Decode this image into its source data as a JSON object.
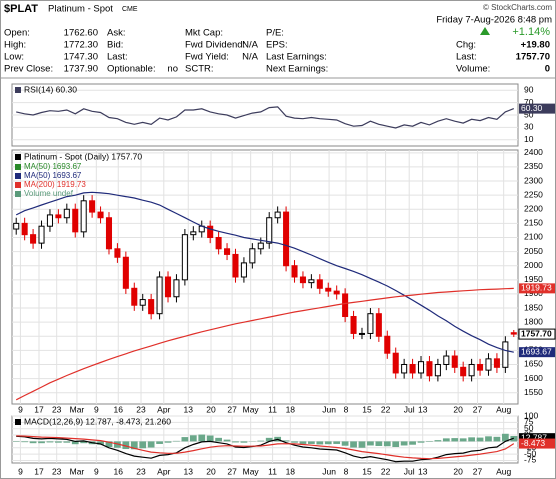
{
  "header": {
    "symbol": "$PLAT",
    "name": "Platinum - Spot",
    "exchange": "CME",
    "credit": "© StockCharts.com",
    "datetime": "Friday 7-Aug-2026 8:48 pm",
    "change_pct": "+1.14%",
    "columns": [
      [
        {
          "label": "Open:",
          "value": "1762.60"
        },
        {
          "label": "High:",
          "value": "1772.30"
        },
        {
          "label": "Low:",
          "value": "1747.30"
        },
        {
          "label": "Prev Close:",
          "value": "1737.90"
        }
      ],
      [
        {
          "label": "Ask:"
        },
        {
          "label": "Bid:"
        },
        {
          "label": "Last:"
        },
        {
          "label": "Optionable:",
          "value": "no"
        }
      ],
      [
        {
          "label": "Mkt Cap:"
        },
        {
          "label": "Fwd Dividend:",
          "value": "N/A"
        },
        {
          "label": "Fwd Yield:",
          "value": "N/A"
        },
        {
          "label": "SCTR:"
        }
      ],
      [
        {
          "label": "P/E:"
        },
        {
          "label": "EPS:"
        },
        {
          "label": "Last Earnings:"
        },
        {
          "label": "Next Earnings:"
        }
      ]
    ],
    "right": [
      {
        "label": "Chg:",
        "value": "+19.80"
      },
      {
        "label": "Last:",
        "value": "1757.70"
      },
      {
        "label": "Volume:",
        "value": "0"
      }
    ]
  },
  "chart_data": [
    {
      "type": "line",
      "xlim": [
        -0.5,
        59.5
      ],
      "ylim": [
        0,
        100
      ],
      "yticks": [
        10,
        30,
        50,
        70,
        90
      ],
      "grid": true,
      "series": [
        {
          "name": "RSI(14) 60.30",
          "color": "#3c3c5c",
          "last_label": "60.30",
          "values": [
            55,
            52,
            50,
            54,
            57,
            56,
            58,
            52,
            60,
            56,
            54,
            46,
            44,
            38,
            35,
            38,
            35,
            45,
            42,
            47,
            58,
            58,
            60,
            55,
            52,
            50,
            45,
            49,
            53,
            55,
            62,
            63,
            48,
            45,
            44,
            46,
            44,
            43,
            42,
            36,
            32,
            33,
            40,
            35,
            32,
            29,
            34,
            32,
            38,
            34,
            40,
            44,
            40,
            37,
            43,
            41,
            46,
            43,
            55,
            60.3
          ]
        }
      ]
    },
    {
      "type": "candlestick",
      "title": "Platinum - Spot (Daily) 1757.70",
      "last_label": "1757.70",
      "up_color": "#000000",
      "down_color": "#e00000",
      "xlim": [
        -0.5,
        59.5
      ],
      "ylim": [
        1510,
        2410
      ],
      "grid": true,
      "yticks": [
        1550,
        1600,
        1650,
        1700,
        1750,
        1800,
        1850,
        1900,
        1950,
        2000,
        2050,
        2100,
        2150,
        2200,
        2250,
        2300,
        2350,
        2400
      ],
      "xticks": [
        {
          "value": 0.5,
          "label": "9"
        },
        {
          "value": 2.7,
          "label": "17"
        },
        {
          "value": 4.8,
          "label": "23"
        },
        {
          "value": 7.2,
          "label": "Mar"
        },
        {
          "value": 9.5,
          "label": "9"
        },
        {
          "value": 12.1,
          "label": "16"
        },
        {
          "value": 14.8,
          "label": "23"
        },
        {
          "value": 17.5,
          "label": "Apr"
        },
        {
          "value": 20.4,
          "label": "13"
        },
        {
          "value": 23.1,
          "label": "20"
        },
        {
          "value": 25.6,
          "label": "27"
        },
        {
          "value": 27.8,
          "label": "May"
        },
        {
          "value": 30.4,
          "label": "11"
        },
        {
          "value": 32.5,
          "label": "18"
        },
        {
          "value": 37.1,
          "label": "Jun"
        },
        {
          "value": 39.1,
          "label": "8"
        },
        {
          "value": 41.6,
          "label": "15"
        },
        {
          "value": 43.8,
          "label": "22"
        },
        {
          "value": 46.6,
          "label": "Jul"
        },
        {
          "value": 48.2,
          "label": "13"
        },
        {
          "value": 52.4,
          "label": "20"
        },
        {
          "value": 54.7,
          "label": "27"
        },
        {
          "value": 57.8,
          "label": "Aug"
        }
      ],
      "open": [
        2130,
        2150,
        2110,
        2080,
        2140,
        2180,
        2170,
        2200,
        2120,
        2230,
        2190,
        2170,
        2060,
        2030,
        1920,
        1860,
        1880,
        1830,
        1960,
        1890,
        1950,
        2110,
        2120,
        2140,
        2100,
        2060,
        2040,
        1960,
        2010,
        2060,
        2080,
        2170,
        2190,
        2000,
        1960,
        1940,
        1950,
        1920,
        1910,
        1900,
        1820,
        1760,
        1760,
        1830,
        1750,
        1690,
        1620,
        1650,
        1620,
        1660,
        1610,
        1650,
        1680,
        1640,
        1610,
        1650,
        1630,
        1670,
        1640,
        1762.6
      ],
      "high": [
        2170,
        2170,
        2130,
        2160,
        2200,
        2200,
        2220,
        2220,
        2250,
        2250,
        2210,
        2190,
        2080,
        2050,
        1940,
        1900,
        1900,
        1980,
        1980,
        1970,
        2130,
        2140,
        2160,
        2160,
        2120,
        2080,
        2060,
        2030,
        2080,
        2100,
        2190,
        2210,
        2210,
        2020,
        1980,
        1970,
        1970,
        1940,
        1930,
        1920,
        1840,
        1780,
        1850,
        1850,
        1770,
        1710,
        1670,
        1670,
        1680,
        1680,
        1670,
        1700,
        1700,
        1660,
        1670,
        1670,
        1690,
        1690,
        1750,
        1772.3
      ],
      "low": [
        2110,
        2090,
        2060,
        2060,
        2120,
        2150,
        2150,
        2100,
        2100,
        2170,
        2150,
        2040,
        2010,
        1900,
        1840,
        1840,
        1810,
        1810,
        1870,
        1870,
        1930,
        2090,
        2100,
        2080,
        2040,
        2020,
        1940,
        1940,
        1990,
        2040,
        2060,
        2150,
        1980,
        1940,
        1920,
        1920,
        1900,
        1890,
        1880,
        1800,
        1740,
        1740,
        1740,
        1730,
        1670,
        1600,
        1600,
        1600,
        1600,
        1590,
        1590,
        1630,
        1620,
        1590,
        1590,
        1610,
        1610,
        1620,
        1620,
        1747.3
      ],
      "close": [
        2150,
        2110,
        2080,
        2140,
        2180,
        2170,
        2200,
        2120,
        2230,
        2190,
        2170,
        2060,
        2030,
        1920,
        1860,
        1880,
        1830,
        1960,
        1890,
        1950,
        2110,
        2120,
        2140,
        2100,
        2060,
        2040,
        1960,
        2010,
        2060,
        2080,
        2170,
        2190,
        2000,
        1960,
        1940,
        1950,
        1920,
        1910,
        1900,
        1820,
        1760,
        1760,
        1830,
        1750,
        1690,
        1620,
        1650,
        1620,
        1660,
        1610,
        1650,
        1680,
        1640,
        1610,
        1650,
        1630,
        1670,
        1640,
        1730,
        1757.7
      ],
      "series": [
        {
          "name": "MA(50) 1693.67",
          "color": "#2a8a2a"
        },
        {
          "name": "MA(50) 1693.67",
          "color": "#1f2a7a",
          "last_label": "1693.67",
          "values": [
            2180,
            2195,
            2205,
            2215,
            2225,
            2235,
            2245,
            2250,
            2258,
            2260,
            2258,
            2255,
            2250,
            2245,
            2240,
            2232,
            2225,
            2215,
            2200,
            2185,
            2170,
            2155,
            2140,
            2130,
            2122,
            2115,
            2108,
            2100,
            2095,
            2090,
            2085,
            2080,
            2072,
            2062,
            2050,
            2038,
            2025,
            2012,
            2000,
            1990,
            1980,
            1968,
            1955,
            1942,
            1928,
            1912,
            1895,
            1878,
            1860,
            1842,
            1822,
            1805,
            1785,
            1768,
            1752,
            1738,
            1722,
            1710,
            1700,
            1693.67
          ]
        },
        {
          "name": "MA(200) 1919.73",
          "color": "#e0302a",
          "last_label": "1919.73",
          "values": [
            1525,
            1540,
            1555,
            1570,
            1585,
            1598,
            1611,
            1623,
            1635,
            1646,
            1657,
            1668,
            1678,
            1688,
            1698,
            1707,
            1716,
            1725,
            1734,
            1742,
            1750,
            1758,
            1766,
            1773,
            1780,
            1787,
            1794,
            1800,
            1806,
            1812,
            1818,
            1824,
            1830,
            1836,
            1841,
            1846,
            1851,
            1856,
            1861,
            1866,
            1870,
            1874,
            1878,
            1882,
            1886,
            1890,
            1893,
            1896,
            1899,
            1902,
            1905,
            1907,
            1909,
            1911,
            1913,
            1915,
            1916,
            1917,
            1918.5,
            1919.73
          ]
        },
        {
          "name": "Volume undef",
          "color": "#5a9a7a"
        }
      ]
    },
    {
      "type": "macd",
      "title": "MACD(12,26,9) 12.787, -8.473, 21.260",
      "xlim": [
        -0.5,
        59.5
      ],
      "ylim": [
        -85,
        100
      ],
      "yticks": [
        -75,
        -50,
        -25,
        0,
        25,
        50,
        75,
        100
      ],
      "grid": true,
      "xticks": [
        {
          "value": 0.5,
          "label": "9"
        },
        {
          "value": 2.7,
          "label": "17"
        },
        {
          "value": 4.8,
          "label": "23"
        },
        {
          "value": 7.2,
          "label": "Mar"
        },
        {
          "value": 9.5,
          "label": "9"
        },
        {
          "value": 12.1,
          "label": "16"
        },
        {
          "value": 14.8,
          "label": "23"
        },
        {
          "value": 17.5,
          "label": "Apr"
        },
        {
          "value": 20.4,
          "label": "13"
        },
        {
          "value": 23.1,
          "label": "20"
        },
        {
          "value": 25.6,
          "label": "27"
        },
        {
          "value": 27.8,
          "label": "May"
        },
        {
          "value": 30.4,
          "label": "11"
        },
        {
          "value": 32.5,
          "label": "18"
        },
        {
          "value": 37.1,
          "label": "Jun"
        },
        {
          "value": 39.1,
          "label": "8"
        },
        {
          "value": 41.6,
          "label": "15"
        },
        {
          "value": 43.8,
          "label": "22"
        },
        {
          "value": 46.6,
          "label": "Jul"
        },
        {
          "value": 48.2,
          "label": "13"
        },
        {
          "value": 52.4,
          "label": "20"
        },
        {
          "value": 54.7,
          "label": "27"
        },
        {
          "value": 57.8,
          "label": "Aug"
        }
      ],
      "histogram": {
        "color": "#6aa88a",
        "values": [
          -2,
          -3,
          -7,
          -7,
          -4,
          -5,
          -5,
          -11,
          -7,
          -11,
          -13,
          -22,
          -25,
          -30,
          -31,
          -27,
          -24,
          -10,
          -5,
          2,
          17,
          24,
          27,
          23,
          14,
          7,
          -4,
          -5,
          -1,
          3,
          14,
          18,
          4,
          -5,
          -10,
          -10,
          -12,
          -11,
          -10,
          -17,
          -24,
          -25,
          -16,
          -18,
          -19,
          -22,
          -16,
          -13,
          -5,
          -2,
          5,
          12,
          13,
          12,
          16,
          15,
          20,
          18,
          30,
          21.26
        ]
      },
      "series": [
        {
          "color": "#000000",
          "last_label": "12.787",
          "values": [
            20,
            18,
            12,
            10,
            12,
            10,
            8,
            0,
            2,
            -5,
            -10,
            -25,
            -35,
            -48,
            -58,
            -62,
            -66,
            -55,
            -52,
            -45,
            -25,
            -12,
            -2,
            0,
            -5,
            -10,
            -22,
            -24,
            -20,
            -15,
            0,
            8,
            -5,
            -15,
            -22,
            -25,
            -30,
            -32,
            -34,
            -45,
            -58,
            -65,
            -60,
            -66,
            -72,
            -80,
            -78,
            -78,
            -72,
            -70,
            -62,
            -52,
            -48,
            -46,
            -38,
            -35,
            -25,
            -22,
            0,
            12.787
          ]
        },
        {
          "color": "#e0302a",
          "last_label": "-8.473",
          "values": [
            22,
            21,
            19,
            17,
            16,
            15,
            13,
            11,
            9,
            6,
            3,
            -3,
            -10,
            -18,
            -27,
            -35,
            -42,
            -45,
            -47,
            -47,
            -42,
            -36,
            -29,
            -23,
            -19,
            -17,
            -18,
            -19,
            -19,
            -18,
            -14,
            -10,
            -9,
            -10,
            -12,
            -15,
            -18,
            -21,
            -24,
            -28,
            -34,
            -40,
            -44,
            -48,
            -53,
            -58,
            -62,
            -65,
            -67,
            -68,
            -67,
            -64,
            -61,
            -58,
            -54,
            -50,
            -45,
            -40,
            -30,
            -8.473
          ]
        }
      ]
    }
  ]
}
